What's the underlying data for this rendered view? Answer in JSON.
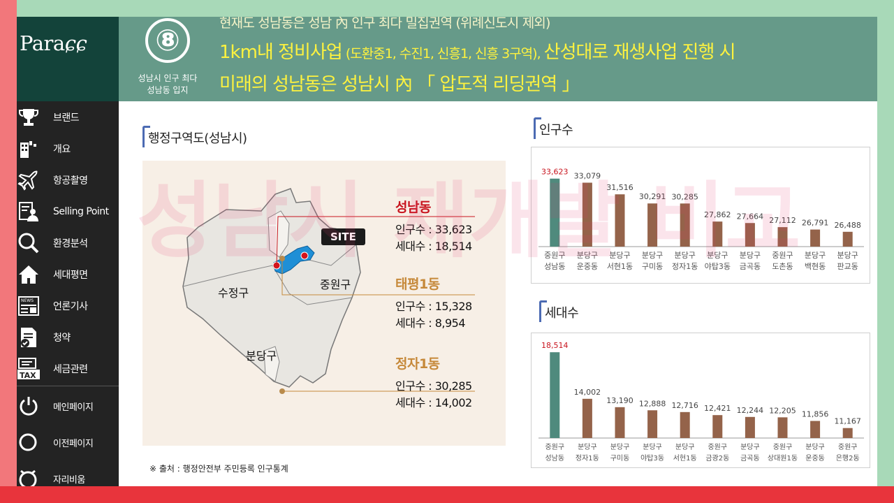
{
  "sidebar": {
    "logo": "Para",
    "items": [
      {
        "label": "브랜드",
        "icon": "trophy-icon"
      },
      {
        "label": "개요",
        "icon": "building-icon"
      },
      {
        "label": "항공촬영",
        "icon": "airplane-icon"
      },
      {
        "label": "Selling Point",
        "icon": "document-person-icon"
      },
      {
        "label": "환경분석",
        "icon": "magnifier-icon"
      },
      {
        "label": "세대평면",
        "icon": "house-icon"
      },
      {
        "label": "언론기사",
        "icon": "newspaper-icon"
      },
      {
        "label": "청약",
        "icon": "checklist-icon"
      },
      {
        "label": "세금관련",
        "icon": "tax-icon"
      }
    ],
    "bottom_items": [
      {
        "label": "메인페이지",
        "icon": "power-icon"
      },
      {
        "label": "이전페이지",
        "icon": "circle-icon"
      },
      {
        "label": "자리비움",
        "icon": "clock-icon"
      }
    ]
  },
  "header": {
    "number": "⑧",
    "caption_line1": "성남시 인구 최다",
    "caption_line2": "성남동 입지",
    "line1": "현재도 성남동은 성남 內 인구 최다 밀집권역 (위례신도시 제외)",
    "line2_a": "1km내 정비사업",
    "line2_b": " (도환중1, 수진1, 신흥1, 신흥 3구역), ",
    "line2_c": " 산성대로 재생사업 진행 시",
    "line3": "미래의 성남동은 성남시 內 「 압도적 리딩권역 」"
  },
  "map": {
    "title": "행정구역도(성남시)",
    "districts": [
      "수정구",
      "중원구",
      "분당구"
    ],
    "site_label": "SITE",
    "areas": [
      {
        "name": "성남동",
        "pop_label": "인구수 : 33,623",
        "hh_label": "세대수 : 18,514",
        "color": "#c8141e"
      },
      {
        "name": "태평1동",
        "pop_label": "인구수 : 15,328",
        "hh_label": "세대수 : 8,954",
        "color": "#c6893a"
      },
      {
        "name": "정자1동",
        "pop_label": "인구수 : 30,285",
        "hh_label": "세대수 : 14,002",
        "color": "#c6893a"
      }
    ],
    "source": "※  출처 : 행정안전부 주민등록 인구통계"
  },
  "chart_data": [
    {
      "type": "bar",
      "title": "인구수",
      "categories": [
        [
          "중원구",
          "성남동"
        ],
        [
          "분당구",
          "운중동"
        ],
        [
          "분당구",
          "서현1동"
        ],
        [
          "분당구",
          "구미동"
        ],
        [
          "분당구",
          "정자1동"
        ],
        [
          "분당구",
          "야탑3동"
        ],
        [
          "분당구",
          "금곡동"
        ],
        [
          "중원구",
          "도촌동"
        ],
        [
          "분당구",
          "백현동"
        ],
        [
          "분당구",
          "판교동"
        ]
      ],
      "values": [
        33623,
        33079,
        31516,
        30291,
        30285,
        27862,
        27664,
        27112,
        26791,
        26488
      ],
      "value_labels": [
        "33,623",
        "33,079",
        "31,516",
        "30,291",
        "30,285",
        "27,862",
        "27,664",
        "27,112",
        "26,791",
        "26,488"
      ],
      "ylim": [
        24500,
        35000
      ],
      "highlight_index": 0,
      "colors": {
        "highlight": "#4f8a7d",
        "bar": "#94634a",
        "highlight_label": "#c8141e",
        "label": "#444444"
      }
    },
    {
      "type": "bar",
      "title": "세대수",
      "categories": [
        [
          "중원구",
          "성남동"
        ],
        [
          "분당구",
          "정자1동"
        ],
        [
          "분당구",
          "구미동"
        ],
        [
          "분당구",
          "야탑3동"
        ],
        [
          "분당구",
          "서현1동"
        ],
        [
          "중원구",
          "금광2동"
        ],
        [
          "분당구",
          "금곡동"
        ],
        [
          "중원구",
          "상대원1동"
        ],
        [
          "분당구",
          "운중동"
        ],
        [
          "중원구",
          "은행2동"
        ]
      ],
      "values": [
        18514,
        14002,
        13190,
        12888,
        12716,
        12421,
        12244,
        12205,
        11856,
        11167
      ],
      "value_labels": [
        "18,514",
        "14,002",
        "13,190",
        "12,888",
        "12,716",
        "12,421",
        "12,244",
        "12,205",
        "11,856",
        "11,167"
      ],
      "ylim": [
        10200,
        19000
      ],
      "highlight_index": 0,
      "colors": {
        "highlight": "#4f8a7d",
        "bar": "#94634a",
        "highlight_label": "#c8141e",
        "label": "#444444"
      }
    }
  ],
  "watermark": "성남시 재개발 비교"
}
